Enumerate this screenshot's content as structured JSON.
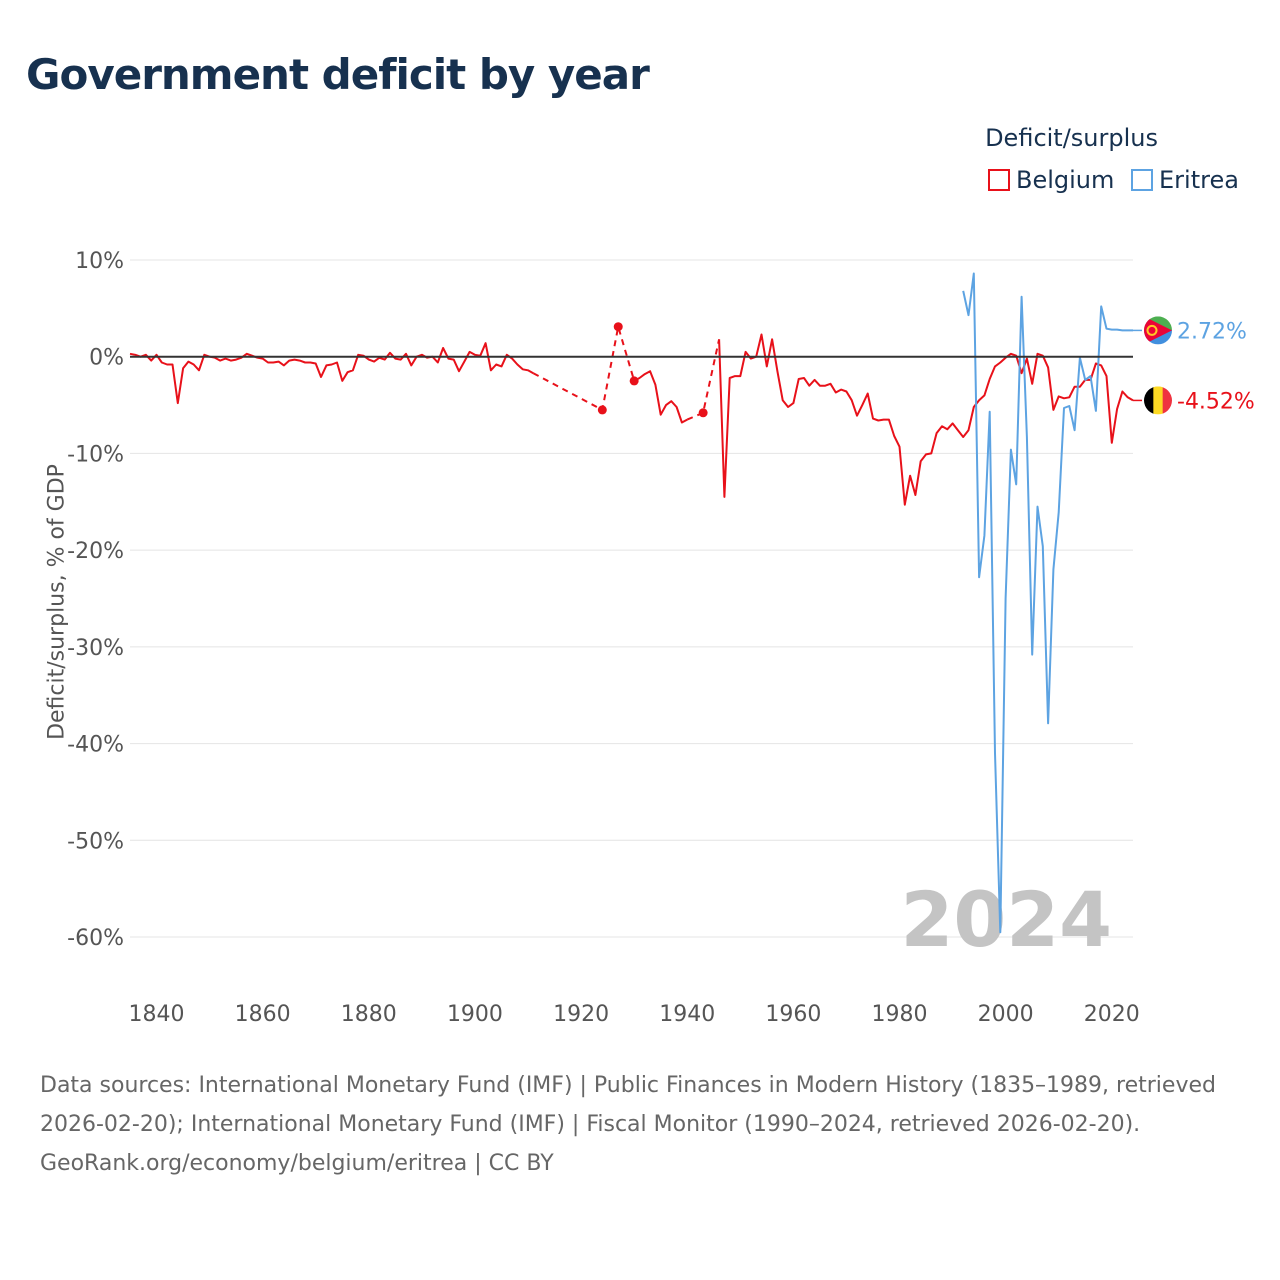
{
  "title": "Government deficit by year",
  "legend": {
    "title": "Deficit/surplus",
    "items": [
      {
        "name": "Belgium",
        "color": "#e8111a"
      },
      {
        "name": "Eritrea",
        "color": "#5da3e2"
      }
    ]
  },
  "yaxis_title": "Deficit/surplus, % of GDP",
  "year_watermark": "2024",
  "end_labels": {
    "eritrea": "2.72%",
    "belgium": "-4.52%"
  },
  "footer": {
    "sources": "Data sources: International Monetary Fund (IMF) | Public Finances in Modern History (1835–1989, retrieved 2026-02-20); International Monetary Fund (IMF) | Fiscal Monitor (1990–2024, retrieved 2026-02-20).",
    "credit": "GeoRank.org/economy/belgium/eritrea | CC BY"
  },
  "chart_data": {
    "type": "line",
    "title": "Government deficit by year",
    "xlabel": "",
    "ylabel": "Deficit/surplus, % of GDP",
    "xlim": [
      1835,
      2024
    ],
    "ylim": [
      -60,
      10
    ],
    "x_ticks": [
      1840,
      1860,
      1880,
      1900,
      1920,
      1940,
      1960,
      1980,
      2000,
      2020
    ],
    "y_ticks": [
      10,
      0,
      -10,
      -20,
      -30,
      -40,
      -50,
      -60
    ],
    "y_tick_labels": [
      "10%",
      "0%",
      "-10%",
      "-20%",
      "-30%",
      "-40%",
      "-50%",
      "-60%"
    ],
    "x_tick_labels": [
      "1840",
      "1860",
      "1880",
      "1900",
      "1920",
      "1940",
      "1960",
      "1980",
      "2000",
      "2020"
    ],
    "series": [
      {
        "name": "Belgium",
        "color": "#e8111a",
        "final_value": -4.52,
        "segments": [
          {
            "style": "solid",
            "points": [
              [
                1835,
                0.3
              ],
              [
                1836,
                0.2
              ],
              [
                1837,
                0.0
              ],
              [
                1838,
                0.2
              ],
              [
                1839,
                -0.4
              ],
              [
                1840,
                0.2
              ],
              [
                1841,
                -0.6
              ],
              [
                1842,
                -0.8
              ],
              [
                1843,
                -0.8
              ],
              [
                1844,
                -4.8
              ],
              [
                1845,
                -1.2
              ],
              [
                1846,
                -0.5
              ],
              [
                1847,
                -0.8
              ],
              [
                1848,
                -1.4
              ],
              [
                1849,
                0.2
              ],
              [
                1850,
                0.0
              ],
              [
                1851,
                -0.1
              ],
              [
                1852,
                -0.4
              ],
              [
                1853,
                -0.2
              ],
              [
                1854,
                -0.4
              ],
              [
                1855,
                -0.3
              ],
              [
                1856,
                -0.1
              ],
              [
                1857,
                0.3
              ],
              [
                1858,
                0.1
              ],
              [
                1859,
                -0.1
              ],
              [
                1860,
                -0.2
              ],
              [
                1861,
                -0.6
              ],
              [
                1862,
                -0.6
              ],
              [
                1863,
                -0.5
              ],
              [
                1864,
                -0.9
              ],
              [
                1865,
                -0.4
              ],
              [
                1866,
                -0.3
              ],
              [
                1867,
                -0.4
              ],
              [
                1868,
                -0.6
              ],
              [
                1869,
                -0.6
              ],
              [
                1870,
                -0.7
              ],
              [
                1871,
                -2.1
              ],
              [
                1872,
                -0.9
              ],
              [
                1873,
                -0.8
              ],
              [
                1874,
                -0.6
              ],
              [
                1875,
                -2.5
              ],
              [
                1876,
                -1.6
              ],
              [
                1877,
                -1.4
              ],
              [
                1878,
                0.2
              ],
              [
                1879,
                0.1
              ],
              [
                1880,
                -0.3
              ],
              [
                1881,
                -0.5
              ],
              [
                1882,
                -0.1
              ],
              [
                1883,
                -0.3
              ],
              [
                1884,
                0.4
              ],
              [
                1885,
                -0.2
              ],
              [
                1886,
                -0.3
              ],
              [
                1887,
                0.3
              ],
              [
                1888,
                -0.9
              ],
              [
                1889,
                0.0
              ],
              [
                1890,
                0.2
              ],
              [
                1891,
                -0.1
              ],
              [
                1892,
                0.0
              ],
              [
                1893,
                -0.6
              ],
              [
                1894,
                0.9
              ],
              [
                1895,
                -0.2
              ],
              [
                1896,
                -0.3
              ],
              [
                1897,
                -1.5
              ],
              [
                1898,
                -0.5
              ],
              [
                1899,
                0.5
              ],
              [
                1900,
                0.2
              ],
              [
                1901,
                0.1
              ],
              [
                1902,
                1.4
              ],
              [
                1903,
                -1.4
              ],
              [
                1904,
                -0.8
              ],
              [
                1905,
                -1.0
              ],
              [
                1906,
                0.2
              ],
              [
                1907,
                -0.2
              ],
              [
                1908,
                -0.8
              ],
              [
                1909,
                -1.3
              ],
              [
                1910,
                -1.4
              ],
              [
                1911,
                -1.7
              ]
            ]
          },
          {
            "style": "dashed",
            "points": [
              [
                1911,
                -1.7
              ],
              [
                1924,
                -5.5
              ],
              [
                1927,
                3.1
              ],
              [
                1930,
                -2.5
              ]
            ]
          },
          {
            "style": "solid",
            "points": [
              [
                1930,
                -2.5
              ],
              [
                1931,
                -2.2
              ],
              [
                1932,
                -1.8
              ],
              [
                1933,
                -1.5
              ],
              [
                1934,
                -2.9
              ],
              [
                1935,
                -6.0
              ],
              [
                1936,
                -5.0
              ],
              [
                1937,
                -4.6
              ],
              [
                1938,
                -5.2
              ],
              [
                1939,
                -6.8
              ],
              [
                1940,
                -6.5
              ]
            ]
          },
          {
            "style": "dashed",
            "points": [
              [
                1940,
                -6.5
              ],
              [
                1943,
                -5.8
              ],
              [
                1946,
                1.8
              ]
            ]
          },
          {
            "style": "solid",
            "points": [
              [
                1946,
                1.8
              ],
              [
                1947,
                -14.5
              ],
              [
                1948,
                -2.2
              ],
              [
                1949,
                -2.0
              ],
              [
                1950,
                -2.0
              ],
              [
                1951,
                0.5
              ],
              [
                1952,
                -0.2
              ],
              [
                1953,
                0.0
              ],
              [
                1954,
                2.3
              ],
              [
                1955,
                -1.0
              ],
              [
                1956,
                1.8
              ],
              [
                1957,
                -1.5
              ],
              [
                1958,
                -4.5
              ],
              [
                1959,
                -5.2
              ],
              [
                1960,
                -4.8
              ],
              [
                1961,
                -2.3
              ],
              [
                1962,
                -2.2
              ],
              [
                1963,
                -3.0
              ],
              [
                1964,
                -2.4
              ],
              [
                1965,
                -3.0
              ],
              [
                1966,
                -3.0
              ],
              [
                1967,
                -2.8
              ],
              [
                1968,
                -3.7
              ],
              [
                1969,
                -3.4
              ],
              [
                1970,
                -3.6
              ],
              [
                1971,
                -4.5
              ],
              [
                1972,
                -6.1
              ],
              [
                1973,
                -5.0
              ],
              [
                1974,
                -3.8
              ],
              [
                1975,
                -6.4
              ],
              [
                1976,
                -6.6
              ],
              [
                1977,
                -6.5
              ],
              [
                1978,
                -6.5
              ],
              [
                1979,
                -8.2
              ],
              [
                1980,
                -9.3
              ],
              [
                1981,
                -15.3
              ],
              [
                1982,
                -12.3
              ],
              [
                1983,
                -14.3
              ],
              [
                1984,
                -10.8
              ],
              [
                1985,
                -10.1
              ],
              [
                1986,
                -10.0
              ],
              [
                1987,
                -7.9
              ],
              [
                1988,
                -7.2
              ],
              [
                1989,
                -7.5
              ],
              [
                1990,
                -6.9
              ],
              [
                1991,
                -7.6
              ],
              [
                1992,
                -8.3
              ],
              [
                1993,
                -7.6
              ],
              [
                1994,
                -5.2
              ],
              [
                1995,
                -4.5
              ],
              [
                1996,
                -4.0
              ],
              [
                1997,
                -2.3
              ],
              [
                1998,
                -1.0
              ],
              [
                1999,
                -0.6
              ],
              [
                2000,
                -0.1
              ],
              [
                2001,
                0.3
              ],
              [
                2002,
                0.1
              ],
              [
                2003,
                -1.7
              ],
              [
                2004,
                -0.2
              ],
              [
                2005,
                -2.8
              ],
              [
                2006,
                0.3
              ],
              [
                2007,
                0.1
              ],
              [
                2008,
                -1.1
              ],
              [
                2009,
                -5.5
              ],
              [
                2010,
                -4.1
              ],
              [
                2011,
                -4.3
              ],
              [
                2012,
                -4.2
              ],
              [
                2013,
                -3.1
              ],
              [
                2014,
                -3.1
              ],
              [
                2015,
                -2.4
              ],
              [
                2016,
                -2.4
              ],
              [
                2017,
                -0.7
              ],
              [
                2018,
                -0.9
              ],
              [
                2019,
                -2.0
              ],
              [
                2020,
                -8.9
              ],
              [
                2021,
                -5.4
              ],
              [
                2022,
                -3.6
              ],
              [
                2023,
                -4.2
              ],
              [
                2024,
                -4.52
              ]
            ]
          }
        ],
        "markers": [
          [
            1924,
            -5.5
          ],
          [
            1927,
            3.1
          ],
          [
            1930,
            -2.5
          ],
          [
            1943,
            -5.8
          ]
        ]
      },
      {
        "name": "Eritrea",
        "color": "#5da3e2",
        "final_value": 2.72,
        "segments": [
          {
            "style": "solid",
            "points": [
              [
                1992,
                6.8
              ],
              [
                1993,
                4.3
              ],
              [
                1994,
                8.6
              ],
              [
                1995,
                -22.8
              ],
              [
                1996,
                -18.5
              ],
              [
                1997,
                -5.7
              ],
              [
                1998,
                -41.0
              ],
              [
                1999,
                -59.5
              ],
              [
                2000,
                -25.0
              ],
              [
                2001,
                -9.6
              ],
              [
                2002,
                -13.2
              ],
              [
                2003,
                6.2
              ],
              [
                2004,
                -8.3
              ],
              [
                2005,
                -30.8
              ],
              [
                2006,
                -15.5
              ],
              [
                2007,
                -19.6
              ],
              [
                2008,
                -37.9
              ],
              [
                2009,
                -22.0
              ],
              [
                2010,
                -16.1
              ],
              [
                2011,
                -5.3
              ],
              [
                2012,
                -5.1
              ],
              [
                2013,
                -7.6
              ],
              [
                2014,
                -0.1
              ],
              [
                2015,
                -2.4
              ],
              [
                2016,
                -2.0
              ],
              [
                2017,
                -5.6
              ],
              [
                2018,
                5.2
              ],
              [
                2019,
                2.9
              ],
              [
                2020,
                2.8
              ],
              [
                2021,
                2.8
              ],
              [
                2022,
                2.72
              ],
              [
                2023,
                2.72
              ],
              [
                2024,
                2.72
              ]
            ]
          }
        ]
      }
    ]
  }
}
